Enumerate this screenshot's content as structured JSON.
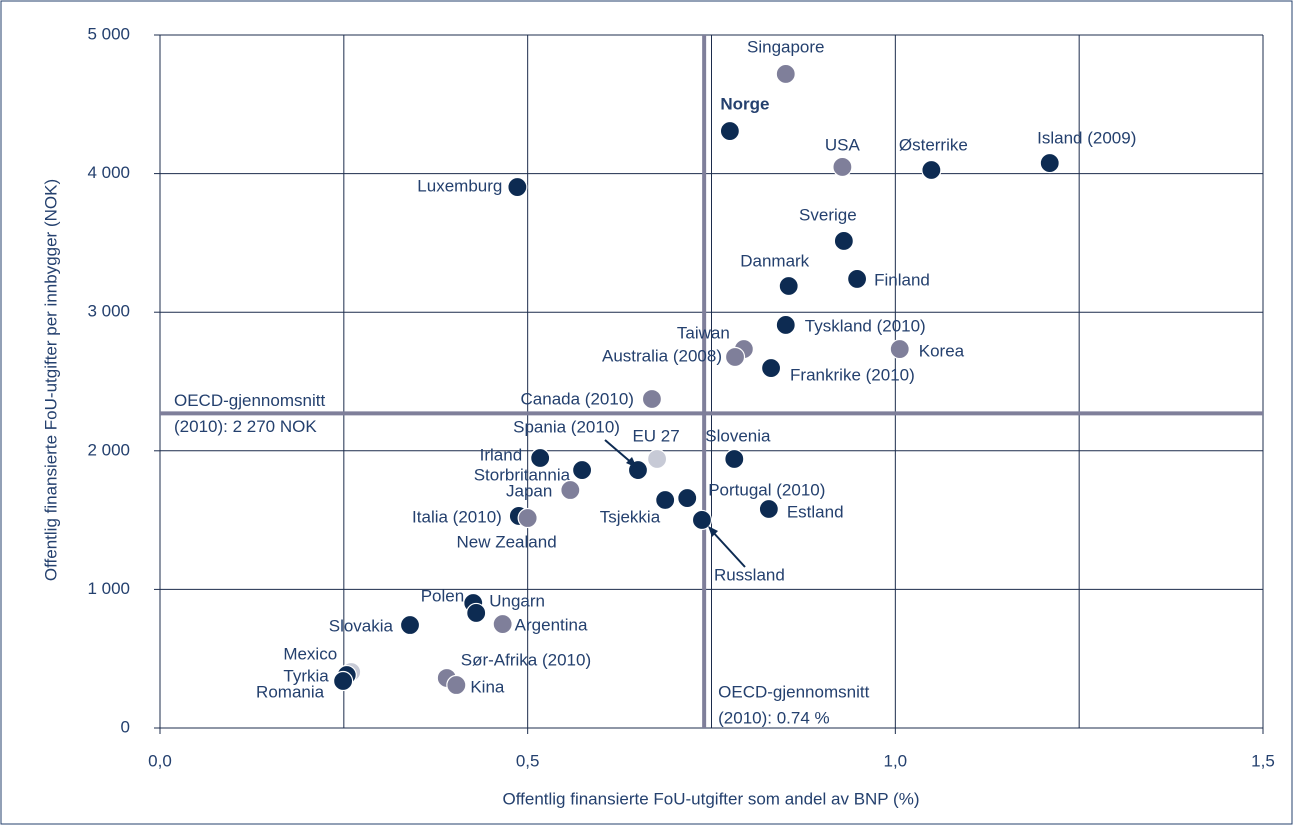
{
  "chart_data": {
    "type": "scatter",
    "x_label": "Offentlig finansierte FoU-utgifter som andel av BNP (%)",
    "y_label": "Offentlig finansierte FoU-utgifter per innbygger (NOK)",
    "xlim": [
      0,
      1.5
    ],
    "ylim": [
      0,
      5000
    ],
    "xticks": [
      {
        "value": 0,
        "label": "0,0"
      },
      {
        "value": 0.5,
        "label": "0,5"
      },
      {
        "value": 1,
        "label": "1,0"
      },
      {
        "value": 1.5,
        "label": "1,5"
      }
    ],
    "xgrid": [
      0,
      0.25,
      0.5,
      0.75,
      1,
      1.25,
      1.5
    ],
    "yticks": [
      0,
      {
        "value": 1000,
        "label": "1 000"
      },
      {
        "value": 2000,
        "label": "2 000"
      },
      {
        "value": 3000,
        "label": "3 000"
      },
      {
        "value": 4000,
        "label": "4 000"
      },
      {
        "value": 5000,
        "label": "5 000"
      }
    ],
    "grid": true,
    "reference_lines": [
      {
        "axis": "y",
        "value": 2270,
        "color": "#7f7f9a",
        "text": [
          "OECD-gjennomsnitt",
          "(2010): 2 270 NOK"
        ]
      },
      {
        "axis": "x",
        "value": 0.74,
        "color": "#7f7f9a",
        "text": [
          "OECD-gjennomsnitt",
          "(2010): 0.74 %"
        ]
      }
    ],
    "points": [
      {
        "label": "Singapore",
        "x": 0.851,
        "y": 4719,
        "color": "#7f7f9a"
      },
      {
        "label": "Norge",
        "x": 0.775,
        "y": 4307,
        "color": "#0d2b52"
      },
      {
        "label": "USA",
        "x": 0.928,
        "y": 4048,
        "color": "#7f7f9a"
      },
      {
        "label": "Østerrike",
        "x": 1.049,
        "y": 4026,
        "color": "#0d2b52"
      },
      {
        "label": "Island (2009)",
        "x": 1.21,
        "y": 4076,
        "color": "#0d2b52"
      },
      {
        "label": "Luxemburg",
        "x": 0.486,
        "y": 3903,
        "color": "#0d2b52"
      },
      {
        "label": "Sverige",
        "x": 0.93,
        "y": 3514,
        "color": "#0d2b52"
      },
      {
        "label": "Danmark",
        "x": 0.855,
        "y": 3189,
        "color": "#0d2b52"
      },
      {
        "label": "Finland",
        "x": 0.948,
        "y": 3240,
        "color": "#0d2b52"
      },
      {
        "label": "Tyskland (2010)",
        "x": 0.851,
        "y": 2908,
        "color": "#0d2b52"
      },
      {
        "label": "Taiwan",
        "x": 0.794,
        "y": 2734,
        "color": "#7f7f9a"
      },
      {
        "label": "Australia (2008)",
        "x": 0.782,
        "y": 2677,
        "color": "#7f7f9a"
      },
      {
        "label": "Korea",
        "x": 1.006,
        "y": 2734,
        "color": "#7f7f9a"
      },
      {
        "label": "Frankrike (2010)",
        "x": 0.831,
        "y": 2597,
        "color": "#0d2b52"
      },
      {
        "label": "Canada (2010)",
        "x": 0.669,
        "y": 2374,
        "color": "#7f7f9a"
      },
      {
        "label": "EU 27",
        "x": 0.676,
        "y": 1941,
        "color": "#c7cad6"
      },
      {
        "label": "Slovenia",
        "x": 0.781,
        "y": 1941,
        "color": "#0d2b52"
      },
      {
        "label": "Irland",
        "x": 0.517,
        "y": 1948,
        "color": "#0d2b52"
      },
      {
        "label": "Storbritannia",
        "x": 0.574,
        "y": 1861,
        "color": "#0d2b52"
      },
      {
        "label": "Spania (2010)",
        "x": 0.65,
        "y": 1861,
        "color": "#0d2b52"
      },
      {
        "label": "Japan",
        "x": 0.558,
        "y": 1717,
        "color": "#7f7f9a"
      },
      {
        "label": "Portugal (2010)",
        "x": 0.717,
        "y": 1659,
        "color": "#0d2b52"
      },
      {
        "label": "Tsjekkia",
        "x": 0.687,
        "y": 1645,
        "color": "#0d2b52"
      },
      {
        "label": "Estland",
        "x": 0.828,
        "y": 1580,
        "color": "#0d2b52"
      },
      {
        "label": "Russland",
        "x": 0.737,
        "y": 1501,
        "color": "#0d2b52"
      },
      {
        "label": "Italia (2010)",
        "x": 0.488,
        "y": 1530,
        "color": "#0d2b52"
      },
      {
        "label": "New Zealand",
        "x": 0.5,
        "y": 1515,
        "color": "#7f7f9a"
      },
      {
        "label": "Ungarn",
        "x": 0.426,
        "y": 902,
        "color": "#0d2b52"
      },
      {
        "label": "Polen",
        "x": 0.43,
        "y": 830,
        "color": "#0d2b52"
      },
      {
        "label": "Argentina",
        "x": 0.466,
        "y": 750,
        "color": "#7f7f9a"
      },
      {
        "label": "Slovakia",
        "x": 0.34,
        "y": 743,
        "color": "#0d2b52"
      },
      {
        "label": "Mexico",
        "x": 0.26,
        "y": 404,
        "color": "#c7cad6"
      },
      {
        "label": "Tyrkia",
        "x": 0.254,
        "y": 382,
        "color": "#0d2b52"
      },
      {
        "label": "Romania",
        "x": 0.249,
        "y": 339,
        "color": "#0d2b52"
      },
      {
        "label": "Sør-Afrika (2010)",
        "x": 0.39,
        "y": 361,
        "color": "#7f7f9a"
      },
      {
        "label": "Kina",
        "x": 0.403,
        "y": 310,
        "color": "#7f7f9a"
      }
    ]
  }
}
